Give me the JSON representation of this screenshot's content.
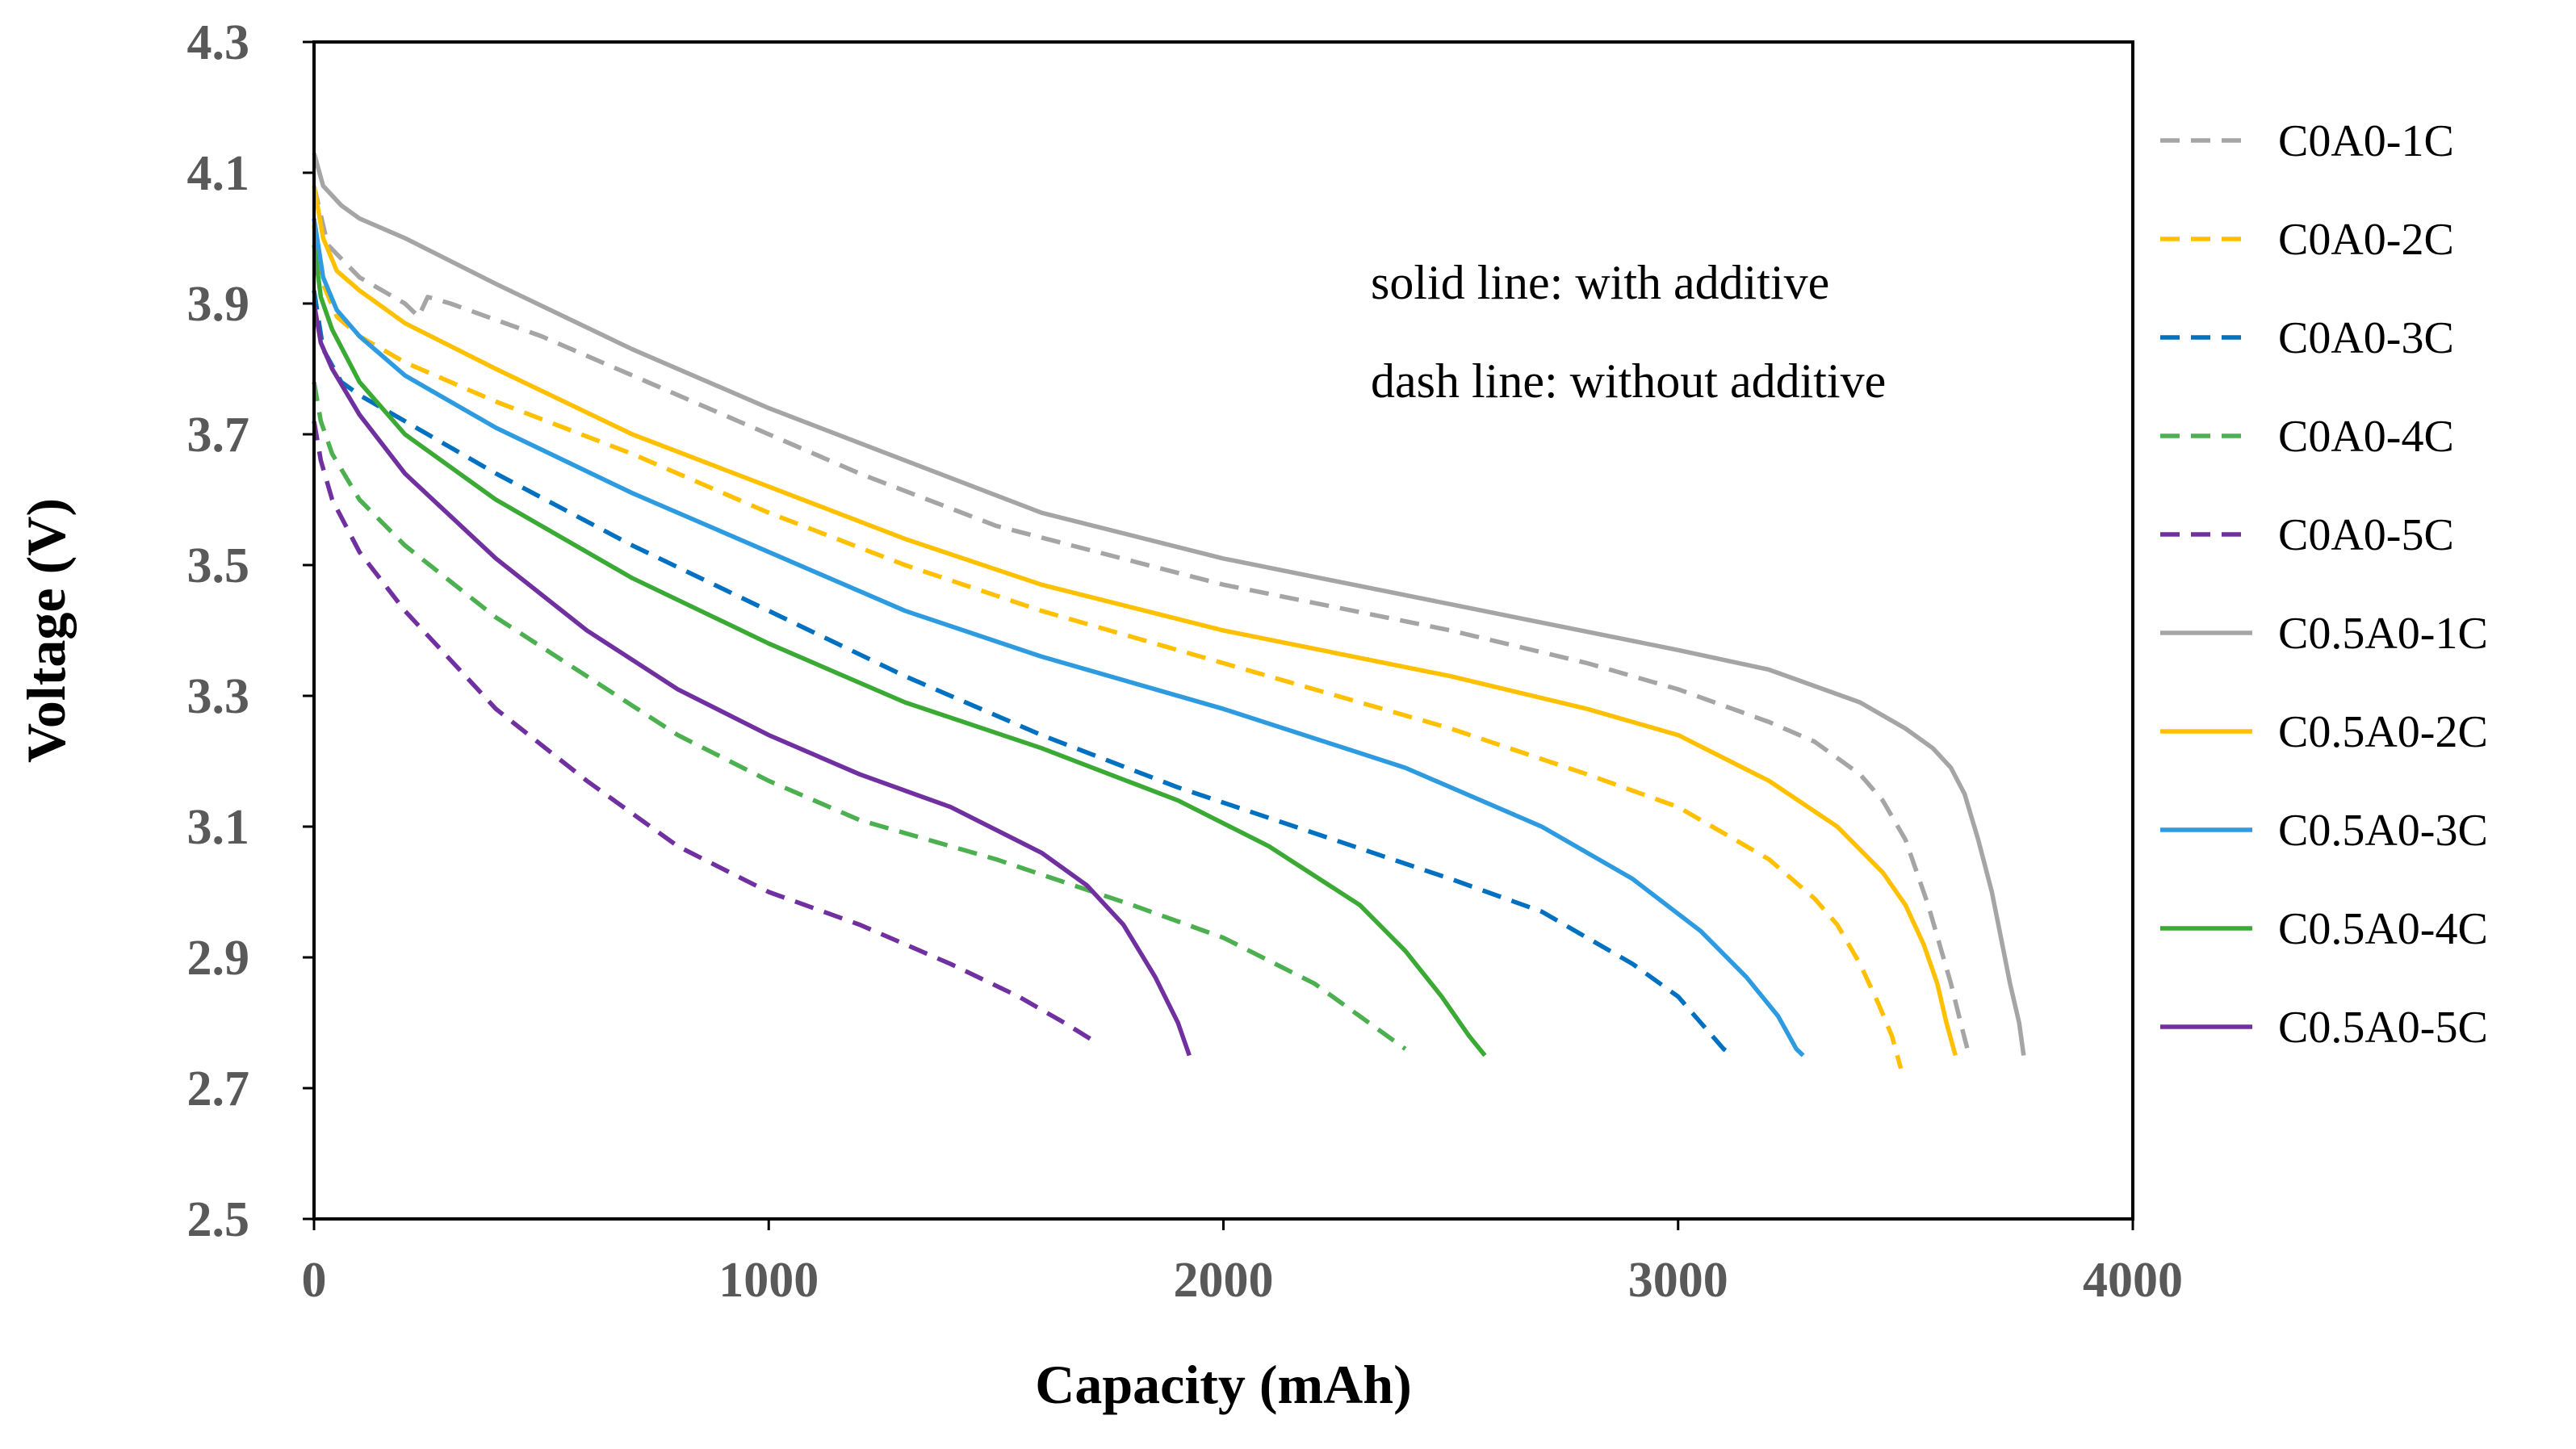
{
  "chart_data": {
    "type": "line",
    "title": "",
    "xlabel": "Capacity (mAh)",
    "ylabel": "Voltage (V)",
    "xlim": [
      0,
      4000
    ],
    "ylim": [
      2.5,
      4.3
    ],
    "x_ticks": [
      "0",
      "1000",
      "2000",
      "3000",
      "4000"
    ],
    "y_ticks": [
      "2.5",
      "2.7",
      "2.9",
      "3.1",
      "3.3",
      "3.5",
      "3.7",
      "3.9",
      "4.1",
      "4.3"
    ],
    "grid": false,
    "legend_position": "right",
    "annotations": [
      "solid line: with additive",
      "dash line: without additive"
    ],
    "series": [
      {
        "name": "C0A0-1C",
        "color": "#a5a5a5",
        "style": "dashed",
        "x": [
          0,
          30,
          100,
          200,
          230,
          250,
          300,
          500,
          800,
          1000,
          1200,
          1500,
          2000,
          2500,
          2800,
          3000,
          3200,
          3300,
          3400,
          3450,
          3500,
          3550,
          3600,
          3625,
          3640
        ],
        "y": [
          4.08,
          3.99,
          3.94,
          3.9,
          3.88,
          3.91,
          3.9,
          3.85,
          3.76,
          3.7,
          3.64,
          3.56,
          3.47,
          3.4,
          3.35,
          3.31,
          3.26,
          3.23,
          3.18,
          3.14,
          3.08,
          2.98,
          2.86,
          2.79,
          2.75
        ]
      },
      {
        "name": "C0A0-2C",
        "color": "#ffc000",
        "style": "dashed",
        "x": [
          0,
          20,
          50,
          100,
          200,
          400,
          700,
          1000,
          1300,
          1600,
          2000,
          2500,
          2800,
          3000,
          3200,
          3300,
          3350,
          3400,
          3440,
          3470,
          3490
        ],
        "y": [
          4.02,
          3.93,
          3.88,
          3.85,
          3.81,
          3.75,
          3.67,
          3.58,
          3.5,
          3.43,
          3.35,
          3.25,
          3.18,
          3.13,
          3.05,
          2.99,
          2.95,
          2.89,
          2.83,
          2.78,
          2.73
        ]
      },
      {
        "name": "C0A0-3C",
        "color": "#0070c0",
        "style": "dashed",
        "x": [
          0,
          20,
          60,
          100,
          200,
          400,
          700,
          1000,
          1300,
          1600,
          1900,
          2200,
          2500,
          2700,
          2900,
          3000,
          3050,
          3100,
          3120
        ],
        "y": [
          3.92,
          3.83,
          3.78,
          3.76,
          3.72,
          3.64,
          3.53,
          3.43,
          3.33,
          3.24,
          3.16,
          3.09,
          3.02,
          2.97,
          2.89,
          2.84,
          2.8,
          2.76,
          2.75
        ]
      },
      {
        "name": "C0A0-4C",
        "color": "#4caf50",
        "style": "dashed",
        "x": [
          0,
          15,
          40,
          100,
          200,
          400,
          600,
          800,
          1000,
          1200,
          1500,
          1800,
          2000,
          2200,
          2300,
          2400
        ],
        "y": [
          3.78,
          3.72,
          3.67,
          3.6,
          3.53,
          3.42,
          3.33,
          3.24,
          3.17,
          3.11,
          3.05,
          2.98,
          2.93,
          2.86,
          2.81,
          2.76
        ]
      },
      {
        "name": "C0A0-5C",
        "color": "#7030a0",
        "style": "dashed",
        "x": [
          0,
          15,
          40,
          100,
          200,
          400,
          600,
          800,
          1000,
          1200,
          1400,
          1550,
          1650,
          1720
        ],
        "y": [
          3.72,
          3.66,
          3.6,
          3.52,
          3.43,
          3.28,
          3.17,
          3.07,
          3.0,
          2.95,
          2.89,
          2.84,
          2.8,
          2.77
        ]
      },
      {
        "name": "C0.5A0-1C",
        "color": "#a5a5a5",
        "style": "solid",
        "x": [
          0,
          20,
          60,
          100,
          200,
          400,
          700,
          1000,
          1300,
          1600,
          2000,
          2500,
          3000,
          3200,
          3400,
          3500,
          3560,
          3600,
          3630,
          3660,
          3690,
          3710,
          3730,
          3750,
          3760
        ],
        "y": [
          4.13,
          4.08,
          4.05,
          4.03,
          4.0,
          3.93,
          3.83,
          3.74,
          3.66,
          3.58,
          3.51,
          3.44,
          3.37,
          3.34,
          3.29,
          3.25,
          3.22,
          3.19,
          3.15,
          3.08,
          3.0,
          2.93,
          2.86,
          2.8,
          2.75
        ]
      },
      {
        "name": "C0.5A0-2C",
        "color": "#ffc000",
        "style": "solid",
        "x": [
          0,
          20,
          50,
          100,
          200,
          400,
          700,
          1000,
          1300,
          1600,
          2000,
          2500,
          2800,
          3000,
          3200,
          3350,
          3450,
          3500,
          3540,
          3570,
          3590,
          3610
        ],
        "y": [
          4.08,
          4.0,
          3.95,
          3.92,
          3.87,
          3.8,
          3.7,
          3.62,
          3.54,
          3.47,
          3.4,
          3.33,
          3.28,
          3.24,
          3.17,
          3.1,
          3.03,
          2.98,
          2.92,
          2.86,
          2.8,
          2.75
        ]
      },
      {
        "name": "C0.5A0-3C",
        "color": "#2e9be0",
        "style": "solid",
        "x": [
          0,
          20,
          50,
          100,
          200,
          400,
          700,
          1000,
          1300,
          1600,
          2000,
          2400,
          2700,
          2900,
          3050,
          3150,
          3220,
          3260,
          3275
        ],
        "y": [
          4.03,
          3.94,
          3.89,
          3.85,
          3.79,
          3.71,
          3.61,
          3.52,
          3.43,
          3.36,
          3.28,
          3.19,
          3.1,
          3.02,
          2.94,
          2.87,
          2.81,
          2.76,
          2.75
        ]
      },
      {
        "name": "C0.5A0-4C",
        "color": "#3aaa35",
        "style": "solid",
        "x": [
          0,
          15,
          40,
          100,
          200,
          400,
          700,
          1000,
          1300,
          1600,
          1900,
          2100,
          2300,
          2400,
          2480,
          2540,
          2575
        ],
        "y": [
          3.99,
          3.91,
          3.86,
          3.78,
          3.7,
          3.6,
          3.48,
          3.38,
          3.29,
          3.22,
          3.14,
          3.07,
          2.98,
          2.91,
          2.84,
          2.78,
          2.75
        ]
      },
      {
        "name": "C0.5A0-5C",
        "color": "#7030a0",
        "style": "solid",
        "x": [
          0,
          15,
          40,
          100,
          200,
          400,
          600,
          800,
          1000,
          1200,
          1400,
          1600,
          1700,
          1780,
          1850,
          1900,
          1925
        ],
        "y": [
          3.9,
          3.84,
          3.8,
          3.73,
          3.64,
          3.51,
          3.4,
          3.31,
          3.24,
          3.18,
          3.13,
          3.06,
          3.01,
          2.95,
          2.87,
          2.8,
          2.75
        ]
      }
    ]
  }
}
